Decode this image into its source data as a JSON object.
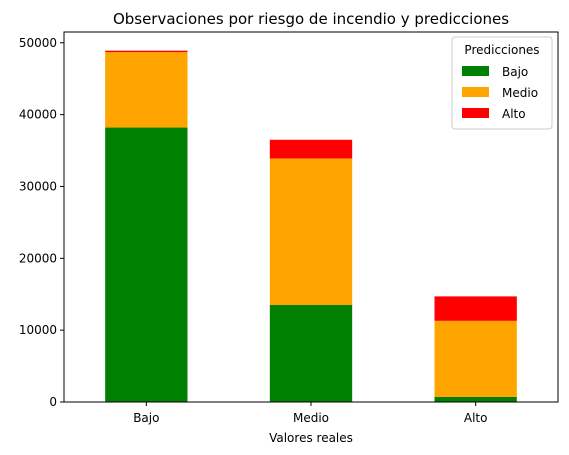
{
  "chart_data": {
    "type": "bar",
    "stacked": true,
    "title": "Observaciones por riesgo de incendio y predicciones",
    "xlabel": "Valores reales",
    "ylabel": "",
    "categories": [
      "Bajo",
      "Medio",
      "Alto"
    ],
    "ylim": [
      0,
      51500
    ],
    "yticks": [
      0,
      10000,
      20000,
      30000,
      40000,
      50000
    ],
    "ytick_labels": [
      "0",
      "10000",
      "20000",
      "30000",
      "40000",
      "50000"
    ],
    "grid": false,
    "legend": {
      "title": "Predicciones",
      "placement": "top-right"
    },
    "series": [
      {
        "name": "Bajo",
        "color": "#008000",
        "values": [
          38200,
          13500,
          700
        ]
      },
      {
        "name": "Medio",
        "color": "#FFA500",
        "values": [
          10500,
          20400,
          10600
        ]
      },
      {
        "name": "Alto",
        "color": "#FF0000",
        "values": [
          200,
          2600,
          3400
        ]
      }
    ]
  }
}
